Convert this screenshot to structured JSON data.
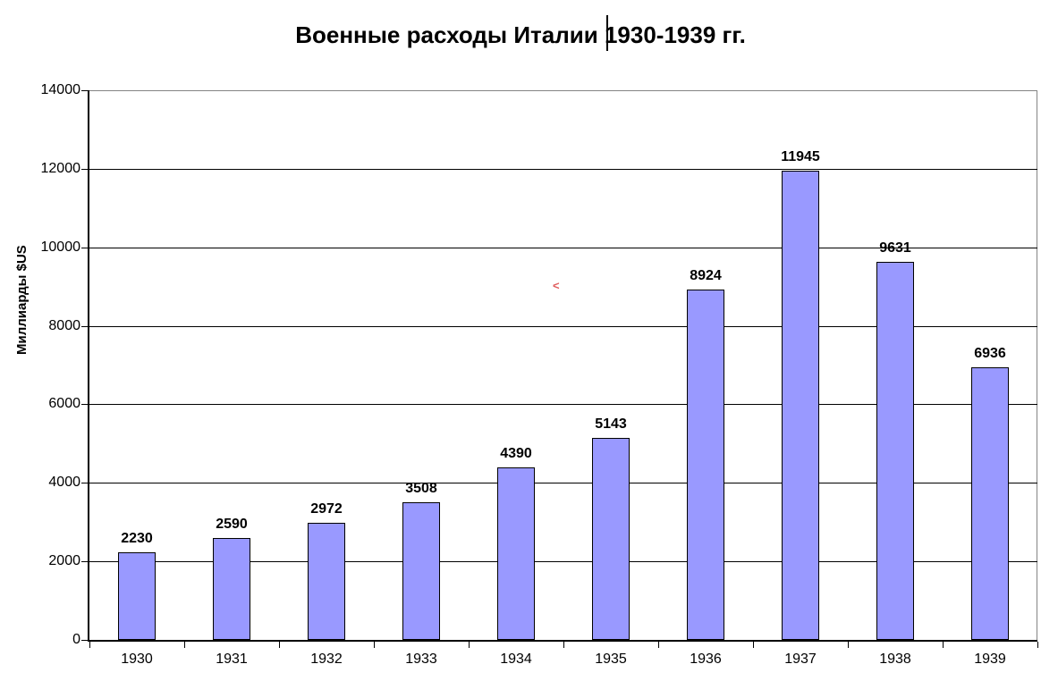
{
  "chart_data": {
    "type": "bar",
    "title": "Военные расходы Италии 1930-1939 гг.",
    "ylabel": "Миллиарды $US",
    "xlabel": "",
    "categories": [
      "1930",
      "1931",
      "1932",
      "1933",
      "1934",
      "1935",
      "1936",
      "1937",
      "1938",
      "1939"
    ],
    "values": [
      2230,
      2590,
      2972,
      3508,
      4390,
      5143,
      8924,
      11945,
      9631,
      6936
    ],
    "ylim": [
      0,
      14000
    ],
    "ytick_step": 2000,
    "grid": true,
    "legend_position": "none",
    "value_labels_shown": true,
    "bar_fill_color": "#9999ff",
    "bar_border_color": "#000000",
    "gridline_color": "#000000",
    "plot_border_color": "#848484"
  },
  "artifacts": {
    "stray_glyph": "<",
    "stray_glyph_color": "#e05c5c"
  }
}
